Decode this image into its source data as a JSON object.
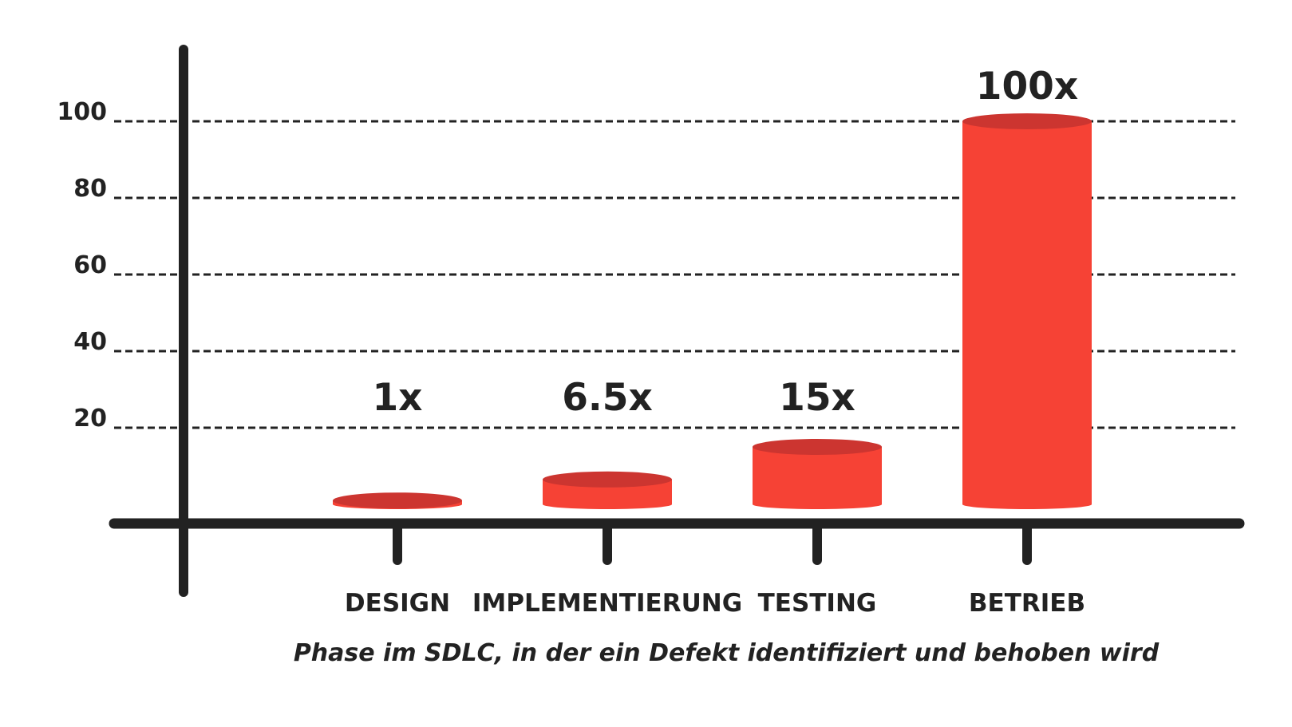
{
  "chart_data": {
    "type": "bar",
    "categories": [
      "DESIGN",
      "IMPLEMENTIERUNG",
      "TESTING",
      "BETRIEB"
    ],
    "values": [
      1,
      6.5,
      15,
      100
    ],
    "value_labels": [
      "1x",
      "6.5x",
      "15x",
      "100x"
    ],
    "xlabel": "Phase im SDLC, in der ein Defekt identifiziert und behoben wird",
    "ylabel": "",
    "yticks": [
      20,
      40,
      60,
      80,
      100
    ],
    "ylim": [
      0,
      100
    ],
    "grid": "dashed horizontal",
    "bar_style": "cylinder",
    "colors": {
      "bar": "#f64235",
      "bar_top": "#cc3530",
      "axis": "#222222",
      "grid": "#222222",
      "text": "#222222"
    }
  }
}
